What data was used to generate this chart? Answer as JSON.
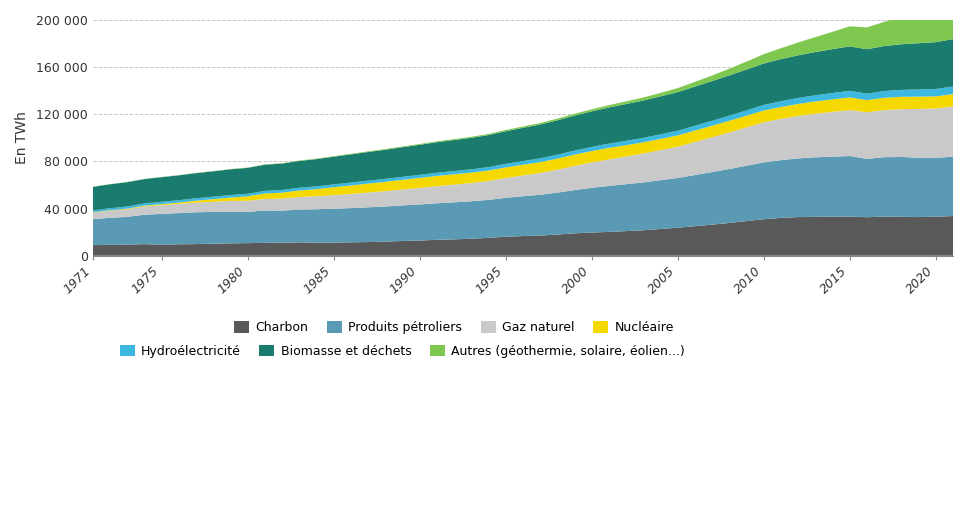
{
  "ylabel": "En TWh",
  "ylim": [
    0,
    200000
  ],
  "yticks": [
    0,
    40000,
    80000,
    120000,
    160000,
    200000
  ],
  "ytick_labels": [
    "0",
    "40 000",
    "80 000",
    "120 000",
    "160 000",
    "200 000"
  ],
  "xticks": [
    1971,
    1975,
    1980,
    1985,
    1990,
    1995,
    2000,
    2005,
    2010,
    2015,
    2020
  ],
  "background_color": "#ffffff",
  "grid_color": "#c8c8c8",
  "series_order": [
    "Charbon",
    "Produits pétroliers",
    "Gaz naturel",
    "Nucléaire",
    "Hydroélectricité",
    "Biomasse et déchets",
    "Autres (géothermie, solaire, éolien...)"
  ],
  "series": {
    "Charbon": {
      "color": "#595959",
      "values": [
        9000,
        9200,
        9500,
        9800,
        9500,
        9700,
        9900,
        10200,
        10500,
        10700,
        10900,
        11100,
        11300,
        11200,
        11200,
        11400,
        11600,
        12000,
        12500,
        12900,
        13500,
        13900,
        14400,
        15200,
        16100,
        16700,
        17100,
        18000,
        19000,
        19700,
        20200,
        20900,
        21600,
        22700,
        23800,
        25100,
        26400,
        27800,
        29400,
        31000,
        32100,
        32800,
        33000,
        33100,
        33200,
        32700,
        33200,
        33000,
        32800,
        33100,
        33700
      ]
    },
    "Produits pétroliers": {
      "color": "#5b9ab5",
      "values": [
        22000,
        23000,
        23500,
        25000,
        26000,
        26500,
        27000,
        27000,
        27000,
        26500,
        27500,
        27200,
        27800,
        28200,
        28700,
        29000,
        29500,
        29800,
        30200,
        30600,
        31000,
        31400,
        31800,
        32200,
        33000,
        33800,
        34600,
        35500,
        36700,
        37900,
        39000,
        39800,
        40600,
        41400,
        42200,
        43400,
        44600,
        45800,
        47000,
        48200,
        49000,
        49800,
        50500,
        51000,
        51400,
        49500,
        50400,
        50800,
        50300,
        49800,
        50500
      ]
    },
    "Gaz naturel": {
      "color": "#c9c9c9",
      "values": [
        5500,
        6000,
        6500,
        7000,
        7400,
        7800,
        8200,
        8600,
        9000,
        9400,
        9800,
        10200,
        10700,
        11100,
        11500,
        12000,
        12500,
        13000,
        13500,
        14000,
        14500,
        15000,
        15500,
        16000,
        16800,
        17600,
        18500,
        19500,
        20500,
        21500,
        22500,
        23500,
        24500,
        25500,
        26500,
        28000,
        29500,
        31000,
        32500,
        34000,
        35000,
        36000,
        37000,
        38000,
        39000,
        39500,
        40000,
        40500,
        41500,
        42000,
        42500
      ]
    },
    "Nucléaire": {
      "color": "#f5d800",
      "values": [
        300,
        400,
        500,
        700,
        900,
        1100,
        1600,
        2200,
        2900,
        3800,
        4600,
        5000,
        5600,
        6000,
        6700,
        7200,
        7600,
        7900,
        8200,
        8500,
        8700,
        8800,
        8800,
        8900,
        9000,
        9100,
        9200,
        9400,
        9600,
        9700,
        9800,
        9600,
        9500,
        9500,
        9600,
        9700,
        9800,
        9900,
        9900,
        10000,
        10100,
        10200,
        10400,
        10600,
        10700,
        10300,
        10400,
        10500,
        10400,
        10300,
        10400
      ]
    },
    "Hydroélectricité": {
      "color": "#3db8e0",
      "values": [
        1600,
        1700,
        1800,
        1900,
        1950,
        2000,
        2050,
        2100,
        2100,
        2150,
        2200,
        2250,
        2300,
        2350,
        2400,
        2450,
        2500,
        2500,
        2550,
        2600,
        2700,
        2750,
        2800,
        2900,
        3000,
        3100,
        3200,
        3300,
        3400,
        3500,
        3600,
        3700,
        3800,
        3900,
        4000,
        4100,
        4200,
        4350,
        4500,
        4700,
        4900,
        5050,
        5200,
        5400,
        5600,
        5500,
        5700,
        5900,
        6100,
        6300,
        6500
      ]
    },
    "Biomasse et déchets": {
      "color": "#1a7c6e",
      "values": [
        20000,
        20300,
        20600,
        20600,
        20900,
        21100,
        21300,
        21500,
        21800,
        22000,
        22200,
        22400,
        22700,
        23100,
        23500,
        23900,
        24300,
        24700,
        25100,
        25500,
        25900,
        26300,
        26700,
        27200,
        27700,
        28200,
        28700,
        29200,
        29700,
        30200,
        30700,
        31200,
        31700,
        32200,
        32700,
        33200,
        33700,
        34200,
        34700,
        35200,
        35700,
        36200,
        36700,
        37200,
        37700,
        37700,
        38200,
        38700,
        39200,
        39700,
        40200
      ]
    },
    "Autres (géothermie, solaire, éolien...)": {
      "color": "#7ec850",
      "values": [
        150,
        160,
        170,
        180,
        190,
        200,
        210,
        230,
        250,
        280,
        310,
        350,
        390,
        430,
        470,
        510,
        560,
        610,
        660,
        710,
        760,
        820,
        880,
        950,
        1050,
        1150,
        1270,
        1400,
        1560,
        1740,
        1960,
        2230,
        2550,
        2940,
        3420,
        4000,
        4700,
        5600,
        6700,
        7900,
        9300,
        10900,
        12700,
        14700,
        17000,
        18500,
        20500,
        23000,
        25500,
        28000,
        30500
      ]
    }
  },
  "legend_items": [
    "Charbon",
    "Produits pétroliers",
    "Gaz naturel",
    "Nucléaire",
    "Hydroélectricité",
    "Biomasse et déchets",
    "Autres (géothermie, solaire, éolien...)"
  ],
  "start_year": 1971
}
